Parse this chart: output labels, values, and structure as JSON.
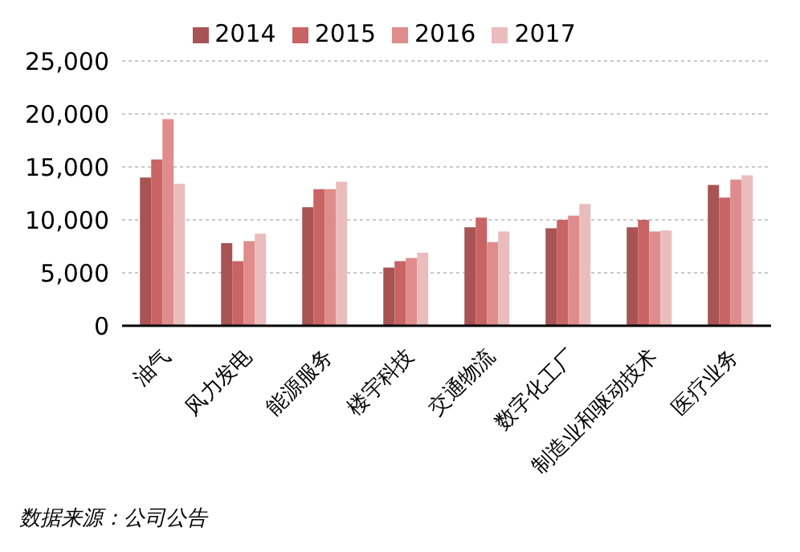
{
  "chart_data": {
    "type": "bar",
    "categories": [
      "油气",
      "风力发电",
      "能源服务",
      "楼宇科技",
      "交通物流",
      "数字化工厂",
      "制造业和驱动技术",
      "医疗业务"
    ],
    "series": [
      {
        "name": "2014",
        "color": "#a85454",
        "values": [
          14000,
          7800,
          11200,
          5500,
          9300,
          9200,
          9300,
          13300
        ]
      },
      {
        "name": "2015",
        "color": "#c96464",
        "values": [
          15700,
          6100,
          12900,
          6100,
          10200,
          10000,
          10000,
          12100
        ]
      },
      {
        "name": "2016",
        "color": "#e08c8c",
        "values": [
          19500,
          8000,
          12900,
          6400,
          7900,
          10400,
          8900,
          13800
        ]
      },
      {
        "name": "2017",
        "color": "#ebbcbc",
        "values": [
          13400,
          8700,
          13600,
          6900,
          8900,
          11500,
          9000,
          14200
        ]
      }
    ],
    "ylim": [
      0,
      25000
    ],
    "yticks": [
      0,
      {
        "value": 5000,
        "label": "5,000"
      },
      {
        "value": 10000,
        "label": "10,000"
      },
      {
        "value": 15000,
        "label": "15,000"
      },
      {
        "value": 20000,
        "label": "20,000"
      },
      {
        "value": 25000,
        "label": "25,000"
      }
    ],
    "grid": "y",
    "legend": "top",
    "annotations": [
      "数据来源：公司公告"
    ]
  }
}
